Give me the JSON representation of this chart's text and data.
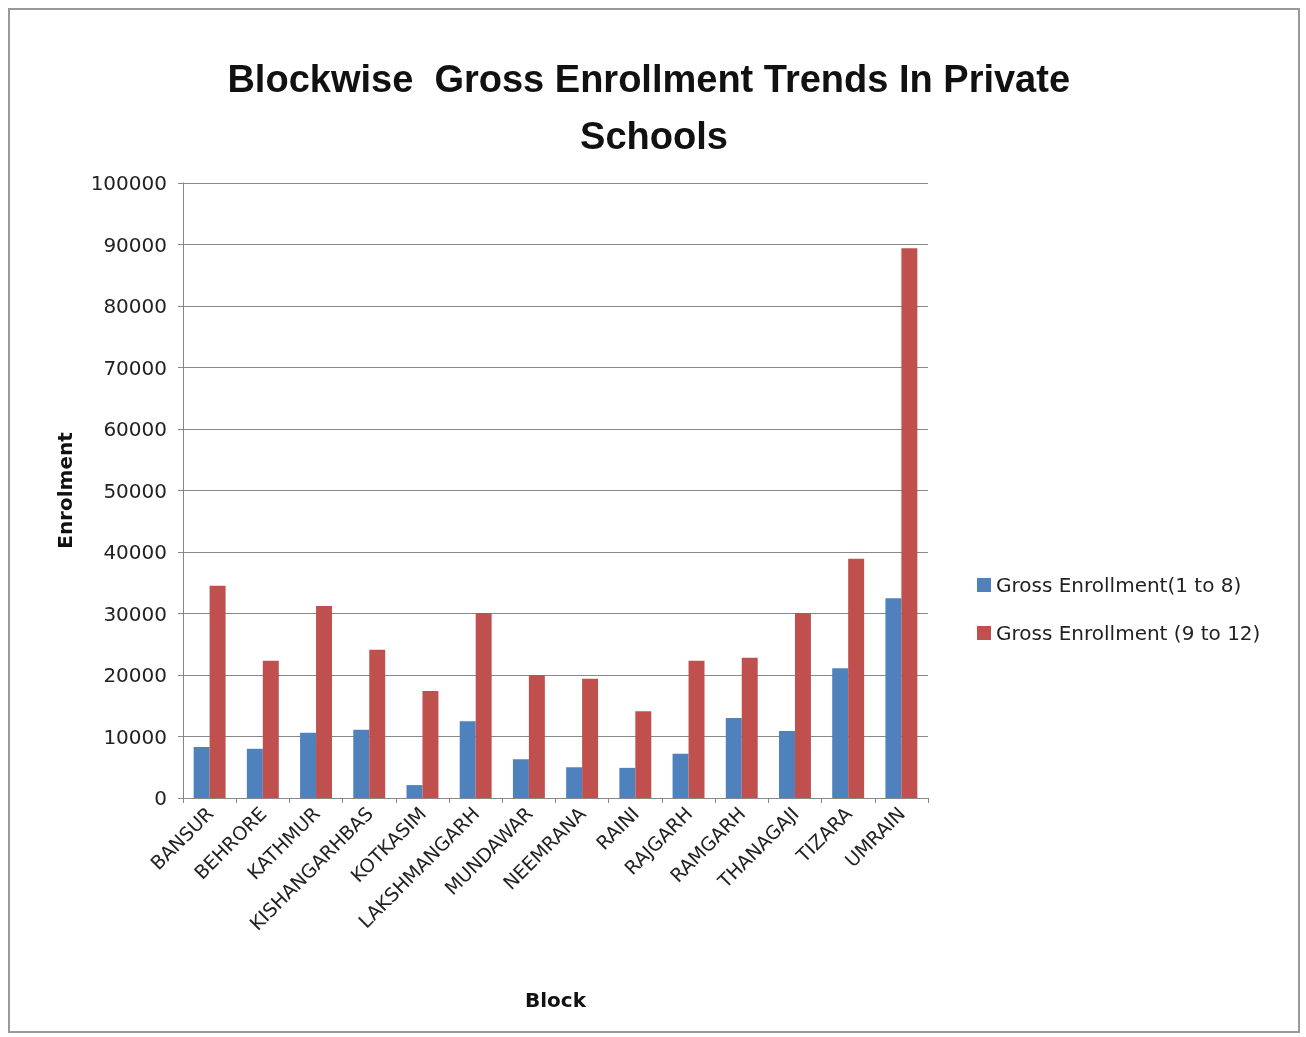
{
  "chart_data": {
    "type": "bar",
    "title": "Blockwise  Gross Enrollment Trends In Private Schools",
    "xlabel": "Block",
    "ylabel": "Enrolment",
    "categories": [
      "BANSUR",
      "BEHRORE",
      "KATHMUR",
      "KISHANGARHBAS",
      "KOTKASIM",
      "LAKSHMANGARH",
      "MUNDAWAR",
      "NEEMRANA",
      "RAINI",
      "RAJGARH",
      "RAMGARH",
      "THANAGAJI",
      "TIZARA",
      "UMRAIN"
    ],
    "series": [
      {
        "name": "Gross Enrollment(1 to 8)",
        "color": "#4f81bd",
        "values": [
          8300,
          8000,
          10600,
          11100,
          2100,
          12500,
          6300,
          5000,
          4900,
          7200,
          13000,
          10900,
          21100,
          32500
        ]
      },
      {
        "name": "Gross Enrollment (9 to 12)",
        "color": "#c0504d",
        "values": [
          34500,
          22300,
          31200,
          24100,
          17400,
          30100,
          20000,
          19400,
          14100,
          22300,
          22800,
          30100,
          38900,
          89400
        ]
      }
    ],
    "ylim": [
      0,
      100000
    ],
    "yticks": [
      0,
      10000,
      20000,
      30000,
      40000,
      50000,
      60000,
      70000,
      80000,
      90000,
      100000
    ],
    "grid": "y",
    "legend": "right"
  }
}
